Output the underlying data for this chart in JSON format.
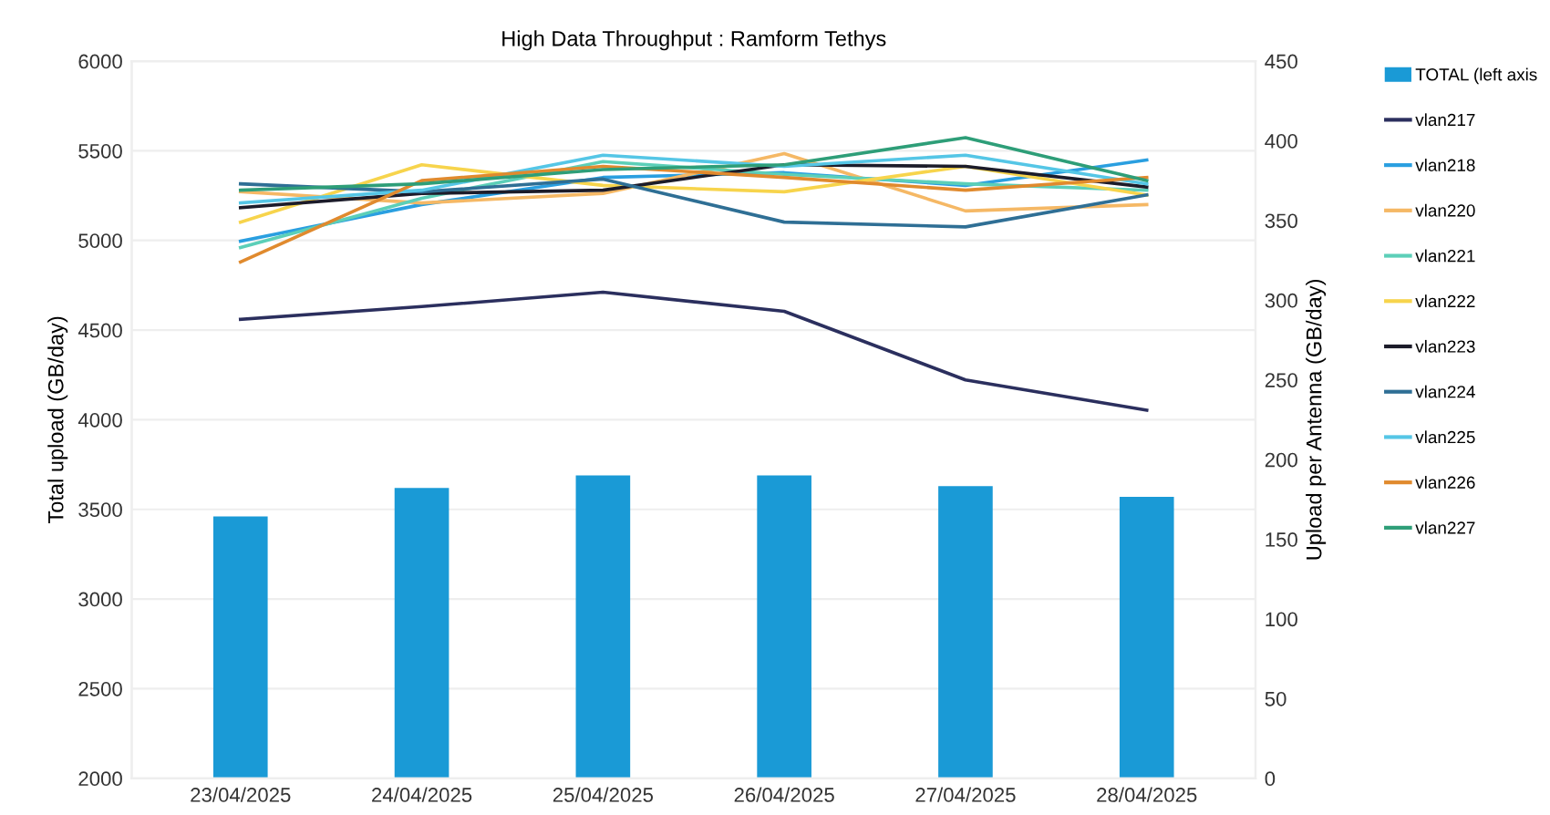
{
  "chart_data": {
    "type": "bar",
    "title": "High Data Throughput : Ramform Tethys",
    "ylabel": "Total upload (GB/day)",
    "y2label": "Upload per Antenna (GB/day)",
    "categories": [
      "23/04/2025",
      "24/04/2025",
      "25/04/2025",
      "26/04/2025",
      "27/04/2025",
      "28/04/2025"
    ],
    "ylim": [
      2000,
      6000
    ],
    "yticks": [
      2000,
      2500,
      3000,
      3500,
      4000,
      4500,
      5000,
      5500,
      6000
    ],
    "y2lim": [
      0,
      450
    ],
    "y2ticks": [
      0,
      50,
      100,
      150,
      200,
      250,
      300,
      350,
      400,
      450
    ],
    "grid": "y",
    "legend": "right",
    "series": [
      {
        "name": "TOTAL (left axis",
        "color": "#1a9ad6",
        "values": [
          3460,
          3620,
          3690,
          3690,
          3630,
          3570
        ]
      },
      {
        "name": "vlan217",
        "type": "line",
        "axis": "y2",
        "color": "#2b2f5e",
        "values": [
          288,
          296,
          305,
          293,
          250,
          231
        ]
      },
      {
        "name": "vlan218",
        "type": "line",
        "axis": "y2",
        "color": "#2a9fe0",
        "values": [
          337,
          360,
          377,
          380,
          372,
          388
        ]
      },
      {
        "name": "vlan220",
        "type": "line",
        "axis": "y2",
        "color": "#f5b865",
        "values": [
          368,
          361,
          367,
          392,
          356,
          360
        ]
      },
      {
        "name": "vlan221",
        "type": "line",
        "axis": "y2",
        "color": "#5ccfb8",
        "values": [
          333,
          364,
          387,
          379,
          373,
          369
        ]
      },
      {
        "name": "vlan222",
        "type": "line",
        "axis": "y2",
        "color": "#f7d44c",
        "values": [
          349,
          385,
          372,
          368,
          384,
          366
        ]
      },
      {
        "name": "vlan223",
        "type": "line",
        "axis": "y2",
        "color": "#1c1c2a",
        "values": [
          358,
          367,
          369,
          385,
          384,
          371
        ]
      },
      {
        "name": "vlan224",
        "type": "line",
        "axis": "y2",
        "color": "#2f6f95",
        "values": [
          373,
          368,
          376,
          349,
          346,
          366
        ]
      },
      {
        "name": "vlan225",
        "type": "line",
        "axis": "y2",
        "color": "#55c6e6",
        "values": [
          361,
          369,
          391,
          384,
          391,
          373
        ]
      },
      {
        "name": "vlan226",
        "type": "line",
        "axis": "y2",
        "color": "#e08a2e",
        "values": [
          324,
          375,
          384,
          377,
          369,
          377
        ]
      },
      {
        "name": "vlan227",
        "type": "line",
        "axis": "y2",
        "color": "#2e9e78",
        "values": [
          369,
          373,
          382,
          385,
          402,
          375
        ]
      }
    ]
  }
}
